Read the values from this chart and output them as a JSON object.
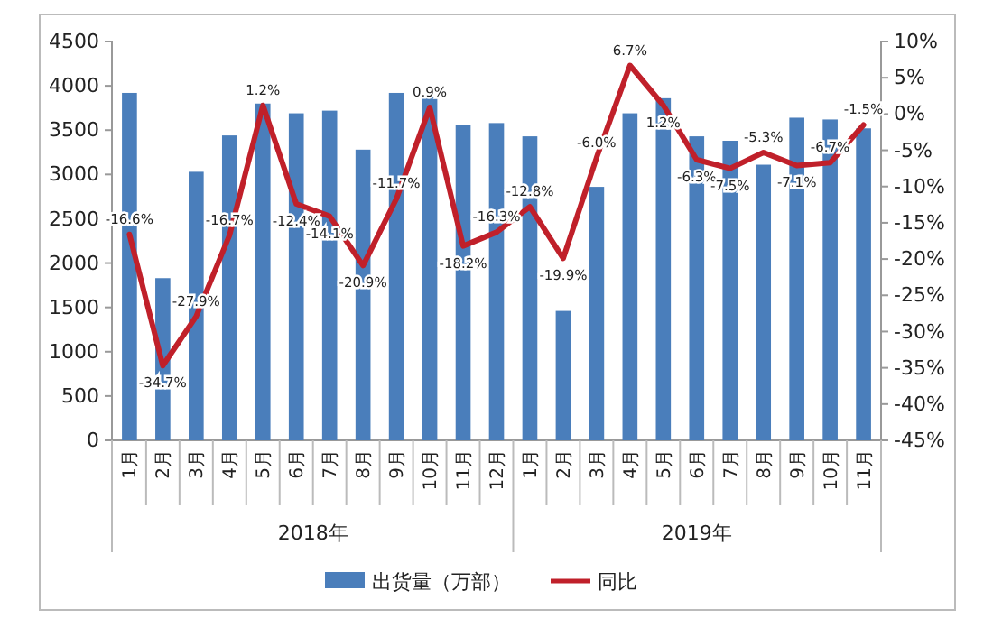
{
  "chart_data": {
    "type": "bar",
    "categories": [
      "1月",
      "2月",
      "3月",
      "4月",
      "5月",
      "6月",
      "7月",
      "8月",
      "9月",
      "10月",
      "11月",
      "12月",
      "1月",
      "2月",
      "3月",
      "4月",
      "5月",
      "6月",
      "7月",
      "8月",
      "9月",
      "10月",
      "11月"
    ],
    "series": [
      {
        "name": "出货量（万部）",
        "color": "#4a7ebb",
        "values": [
          3920,
          1830,
          3030,
          3440,
          3800,
          3690,
          3720,
          3280,
          3920,
          3870,
          3560,
          3580,
          3430,
          1460,
          2860,
          3690,
          3860,
          3430,
          3380,
          3110,
          3640,
          3620,
          3520
        ]
      },
      {
        "name": "同比",
        "type": "line",
        "axis": "y2",
        "color": "#c0202a",
        "values": [
          -16.6,
          -34.7,
          -27.9,
          -16.7,
          1.2,
          -12.4,
          -14.1,
          -20.9,
          -11.7,
          0.9,
          -18.2,
          -16.3,
          -12.8,
          -19.9,
          -6.0,
          6.7,
          1.2,
          -6.3,
          -7.5,
          -5.3,
          -7.1,
          -6.7,
          -1.5
        ],
        "value_labels": [
          "-16.6%",
          "-34.7%",
          "-27.9%",
          "-16.7%",
          "1.2%",
          "-12.4%",
          "-14.1%",
          "-20.9%",
          "-11.7%",
          "0.9%",
          "-18.2%",
          "-16.3%",
          "-12.8%",
          "-19.9%",
          "-6.0%",
          "6.7%",
          "1.2%",
          "-6.3%",
          "-7.5%",
          "-5.3%",
          "-7.1%",
          "-6.7%",
          "-1.5%"
        ]
      }
    ],
    "ylim": [
      0,
      4500
    ],
    "yticks": [
      0,
      500,
      1000,
      1500,
      2000,
      2500,
      3000,
      3500,
      4000,
      4500
    ],
    "y2lim": [
      -45,
      10
    ],
    "y2ticks": [
      {
        "value": -45,
        "label": "-45%"
      },
      {
        "value": -40,
        "label": "-40%"
      },
      {
        "value": -35,
        "label": "-35%"
      },
      {
        "value": -30,
        "label": "-30%"
      },
      {
        "value": -25,
        "label": "-25%"
      },
      {
        "value": -20,
        "label": "-20%"
      },
      {
        "value": -15,
        "label": "-15%"
      },
      {
        "value": -10,
        "label": "-10%"
      },
      {
        "value": -5,
        "label": "-5%"
      },
      {
        "value": 0,
        "label": "0%"
      },
      {
        "value": 5,
        "label": "5%"
      },
      {
        "value": 10,
        "label": "10%"
      }
    ],
    "annotations": [
      "2018年",
      "2019年"
    ],
    "legend": "bottom"
  }
}
